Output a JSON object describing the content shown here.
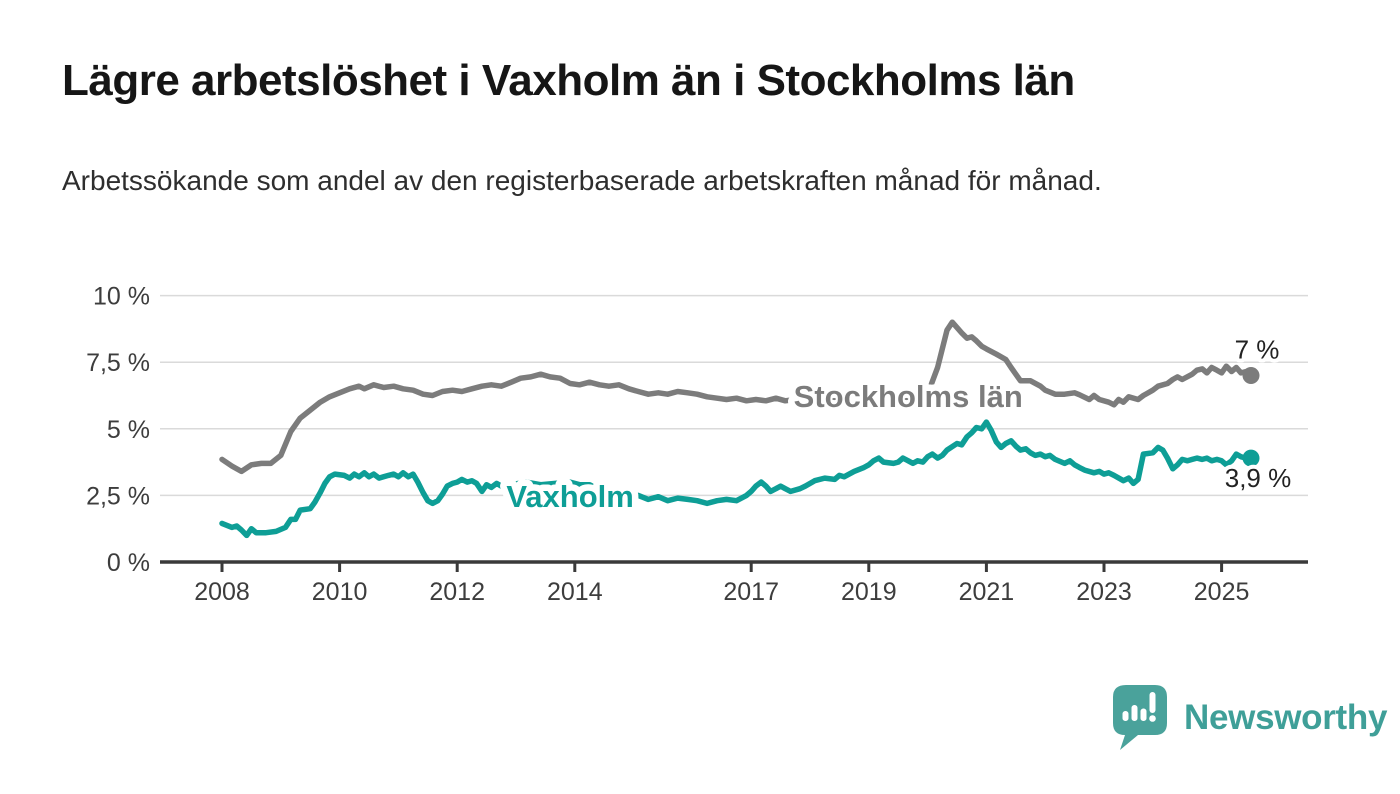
{
  "header": {
    "title": "Lägre arbetslöshet i Vaxholm än i Stockholms län",
    "subtitle": "Arbetssökande som andel av den registerbaserade arbetskraften månad för månad."
  },
  "footer": {
    "brand": "Newsworthy",
    "brand_color": "#3f9f98",
    "logo_icon": "newsworthy-speech-bubble-bar-chart-icon"
  },
  "chart_data": {
    "type": "line",
    "grid": true,
    "legend": "inline-labels",
    "x_domain": [
      2008,
      2026.47
    ],
    "y_domain": [
      0,
      10
    ],
    "y_unit": "%",
    "x_tick_labels": [
      {
        "value": 2008,
        "label": "2008"
      },
      {
        "value": 2010,
        "label": "2010"
      },
      {
        "value": 2012,
        "label": "2012"
      },
      {
        "value": 2014,
        "label": "2014"
      },
      {
        "value": 2017,
        "label": "2017"
      },
      {
        "value": 2019,
        "label": "2019"
      },
      {
        "value": 2021,
        "label": "2021"
      },
      {
        "value": 2023,
        "label": "2023"
      },
      {
        "value": 2025,
        "label": "2025"
      }
    ],
    "y_tick_labels": [
      {
        "value": 0,
        "label": "0 %"
      },
      {
        "value": 2.5,
        "label": "2,5 %"
      },
      {
        "value": 5,
        "label": "5 %"
      },
      {
        "value": 7.5,
        "label": "7,5 %"
      },
      {
        "value": 10,
        "label": "10 %"
      }
    ],
    "series": [
      {
        "id": "stockholms-lan",
        "name": "Stockholms län",
        "color": "#7c7c7c",
        "inline_label_pos": {
          "x": 2019.67,
          "y": 6.23
        },
        "end_label": "7 %",
        "end_value": 7.0,
        "points": [
          [
            2008.0,
            3.85
          ],
          [
            2008.17,
            3.6
          ],
          [
            2008.33,
            3.4
          ],
          [
            2008.5,
            3.65
          ],
          [
            2008.67,
            3.7
          ],
          [
            2008.83,
            3.7
          ],
          [
            2009.0,
            4.0
          ],
          [
            2009.17,
            4.9
          ],
          [
            2009.33,
            5.4
          ],
          [
            2009.5,
            5.7
          ],
          [
            2009.67,
            6.0
          ],
          [
            2009.83,
            6.2
          ],
          [
            2010.0,
            6.35
          ],
          [
            2010.17,
            6.5
          ],
          [
            2010.33,
            6.6
          ],
          [
            2010.42,
            6.5
          ],
          [
            2010.58,
            6.65
          ],
          [
            2010.75,
            6.55
          ],
          [
            2010.92,
            6.6
          ],
          [
            2011.08,
            6.5
          ],
          [
            2011.25,
            6.45
          ],
          [
            2011.42,
            6.3
          ],
          [
            2011.58,
            6.25
          ],
          [
            2011.75,
            6.4
          ],
          [
            2011.92,
            6.45
          ],
          [
            2012.08,
            6.4
          ],
          [
            2012.25,
            6.5
          ],
          [
            2012.42,
            6.6
          ],
          [
            2012.58,
            6.65
          ],
          [
            2012.75,
            6.6
          ],
          [
            2012.92,
            6.75
          ],
          [
            2013.08,
            6.9
          ],
          [
            2013.25,
            6.95
          ],
          [
            2013.42,
            7.05
          ],
          [
            2013.58,
            6.95
          ],
          [
            2013.75,
            6.9
          ],
          [
            2013.92,
            6.7
          ],
          [
            2014.08,
            6.65
          ],
          [
            2014.25,
            6.75
          ],
          [
            2014.42,
            6.65
          ],
          [
            2014.58,
            6.6
          ],
          [
            2014.75,
            6.65
          ],
          [
            2014.92,
            6.5
          ],
          [
            2015.08,
            6.4
          ],
          [
            2015.25,
            6.3
          ],
          [
            2015.42,
            6.35
          ],
          [
            2015.58,
            6.3
          ],
          [
            2015.75,
            6.4
          ],
          [
            2015.92,
            6.35
          ],
          [
            2016.08,
            6.3
          ],
          [
            2016.25,
            6.2
          ],
          [
            2016.42,
            6.15
          ],
          [
            2016.58,
            6.1
          ],
          [
            2016.75,
            6.15
          ],
          [
            2016.92,
            6.05
          ],
          [
            2017.08,
            6.1
          ],
          [
            2017.25,
            6.05
          ],
          [
            2017.42,
            6.15
          ],
          [
            2017.58,
            6.05
          ],
          [
            2017.75,
            6.1
          ],
          [
            2017.92,
            6.0
          ],
          [
            2018.08,
            6.05
          ],
          [
            2018.33,
            6.1
          ],
          [
            2018.58,
            6.0
          ],
          [
            2018.83,
            6.05
          ],
          [
            2019.08,
            6.0
          ],
          [
            2019.33,
            6.1
          ],
          [
            2019.58,
            6.05
          ],
          [
            2019.83,
            6.15
          ],
          [
            2020.0,
            6.3
          ],
          [
            2020.17,
            7.3
          ],
          [
            2020.33,
            8.7
          ],
          [
            2020.42,
            9.0
          ],
          [
            2020.5,
            8.8
          ],
          [
            2020.58,
            8.6
          ],
          [
            2020.67,
            8.4
          ],
          [
            2020.75,
            8.45
          ],
          [
            2020.83,
            8.3
          ],
          [
            2020.92,
            8.1
          ],
          [
            2021.0,
            8.0
          ],
          [
            2021.17,
            7.8
          ],
          [
            2021.33,
            7.6
          ],
          [
            2021.42,
            7.3
          ],
          [
            2021.5,
            7.05
          ],
          [
            2021.58,
            6.8
          ],
          [
            2021.75,
            6.8
          ],
          [
            2021.92,
            6.6
          ],
          [
            2022.0,
            6.45
          ],
          [
            2022.17,
            6.3
          ],
          [
            2022.33,
            6.3
          ],
          [
            2022.5,
            6.35
          ],
          [
            2022.58,
            6.28
          ],
          [
            2022.75,
            6.1
          ],
          [
            2022.83,
            6.25
          ],
          [
            2022.92,
            6.1
          ],
          [
            2023.08,
            6.0
          ],
          [
            2023.17,
            5.9
          ],
          [
            2023.25,
            6.1
          ],
          [
            2023.33,
            6.0
          ],
          [
            2023.42,
            6.2
          ],
          [
            2023.58,
            6.1
          ],
          [
            2023.67,
            6.25
          ],
          [
            2023.83,
            6.45
          ],
          [
            2023.92,
            6.6
          ],
          [
            2024.08,
            6.7
          ],
          [
            2024.17,
            6.85
          ],
          [
            2024.25,
            6.95
          ],
          [
            2024.33,
            6.85
          ],
          [
            2024.5,
            7.05
          ],
          [
            2024.58,
            7.2
          ],
          [
            2024.67,
            7.25
          ],
          [
            2024.75,
            7.1
          ],
          [
            2024.83,
            7.3
          ],
          [
            2024.92,
            7.2
          ],
          [
            2025.0,
            7.1
          ],
          [
            2025.08,
            7.35
          ],
          [
            2025.17,
            7.15
          ],
          [
            2025.25,
            7.3
          ],
          [
            2025.33,
            7.1
          ],
          [
            2025.42,
            7.15
          ],
          [
            2025.5,
            7.0
          ]
        ]
      },
      {
        "id": "vaxholm",
        "name": "Vaxholm",
        "color": "#0e9e96",
        "inline_label_pos": {
          "x": 2013.92,
          "y": 2.48
        },
        "end_label": "3,9 %",
        "end_value": 3.9,
        "points": [
          [
            2008.0,
            1.45
          ],
          [
            2008.17,
            1.3
          ],
          [
            2008.25,
            1.35
          ],
          [
            2008.33,
            1.2
          ],
          [
            2008.42,
            1.0
          ],
          [
            2008.5,
            1.25
          ],
          [
            2008.58,
            1.1
          ],
          [
            2008.75,
            1.1
          ],
          [
            2008.92,
            1.15
          ],
          [
            2009.08,
            1.3
          ],
          [
            2009.17,
            1.6
          ],
          [
            2009.25,
            1.6
          ],
          [
            2009.33,
            1.95
          ],
          [
            2009.5,
            2.0
          ],
          [
            2009.58,
            2.25
          ],
          [
            2009.67,
            2.6
          ],
          [
            2009.75,
            2.95
          ],
          [
            2009.83,
            3.2
          ],
          [
            2009.92,
            3.3
          ],
          [
            2010.08,
            3.25
          ],
          [
            2010.17,
            3.15
          ],
          [
            2010.25,
            3.3
          ],
          [
            2010.33,
            3.2
          ],
          [
            2010.42,
            3.35
          ],
          [
            2010.5,
            3.2
          ],
          [
            2010.58,
            3.3
          ],
          [
            2010.67,
            3.15
          ],
          [
            2010.83,
            3.25
          ],
          [
            2010.92,
            3.3
          ],
          [
            2011.0,
            3.2
          ],
          [
            2011.08,
            3.35
          ],
          [
            2011.17,
            3.2
          ],
          [
            2011.25,
            3.3
          ],
          [
            2011.33,
            3.0
          ],
          [
            2011.42,
            2.6
          ],
          [
            2011.5,
            2.3
          ],
          [
            2011.58,
            2.2
          ],
          [
            2011.67,
            2.3
          ],
          [
            2011.75,
            2.55
          ],
          [
            2011.83,
            2.85
          ],
          [
            2011.92,
            2.95
          ],
          [
            2012.0,
            3.0
          ],
          [
            2012.08,
            3.1
          ],
          [
            2012.17,
            3.0
          ],
          [
            2012.25,
            3.05
          ],
          [
            2012.33,
            2.95
          ],
          [
            2012.42,
            2.65
          ],
          [
            2012.5,
            2.9
          ],
          [
            2012.58,
            2.8
          ],
          [
            2012.67,
            2.95
          ],
          [
            2012.75,
            2.85
          ],
          [
            2012.92,
            2.9
          ],
          [
            2013.17,
            3.0
          ],
          [
            2013.42,
            2.9
          ],
          [
            2013.67,
            2.95
          ],
          [
            2013.92,
            3.0
          ],
          [
            2014.08,
            2.9
          ],
          [
            2014.25,
            2.9
          ],
          [
            2014.42,
            2.7
          ],
          [
            2014.58,
            2.55
          ],
          [
            2014.75,
            2.5
          ],
          [
            2014.92,
            2.45
          ],
          [
            2015.08,
            2.5
          ],
          [
            2015.25,
            2.35
          ],
          [
            2015.42,
            2.45
          ],
          [
            2015.58,
            2.3
          ],
          [
            2015.75,
            2.4
          ],
          [
            2015.92,
            2.35
          ],
          [
            2016.08,
            2.3
          ],
          [
            2016.25,
            2.2
          ],
          [
            2016.42,
            2.3
          ],
          [
            2016.58,
            2.35
          ],
          [
            2016.75,
            2.3
          ],
          [
            2016.92,
            2.5
          ],
          [
            2017.0,
            2.65
          ],
          [
            2017.08,
            2.85
          ],
          [
            2017.17,
            3.0
          ],
          [
            2017.25,
            2.85
          ],
          [
            2017.33,
            2.65
          ],
          [
            2017.42,
            2.75
          ],
          [
            2017.5,
            2.85
          ],
          [
            2017.58,
            2.75
          ],
          [
            2017.67,
            2.65
          ],
          [
            2017.83,
            2.75
          ],
          [
            2017.92,
            2.85
          ],
          [
            2018.08,
            3.05
          ],
          [
            2018.25,
            3.15
          ],
          [
            2018.42,
            3.1
          ],
          [
            2018.5,
            3.25
          ],
          [
            2018.58,
            3.2
          ],
          [
            2018.75,
            3.4
          ],
          [
            2018.92,
            3.55
          ],
          [
            2019.0,
            3.65
          ],
          [
            2019.08,
            3.8
          ],
          [
            2019.17,
            3.9
          ],
          [
            2019.25,
            3.75
          ],
          [
            2019.42,
            3.7
          ],
          [
            2019.5,
            3.75
          ],
          [
            2019.58,
            3.9
          ],
          [
            2019.67,
            3.8
          ],
          [
            2019.75,
            3.7
          ],
          [
            2019.83,
            3.8
          ],
          [
            2019.92,
            3.75
          ],
          [
            2020.0,
            3.95
          ],
          [
            2020.08,
            4.05
          ],
          [
            2020.17,
            3.9
          ],
          [
            2020.25,
            4.0
          ],
          [
            2020.33,
            4.2
          ],
          [
            2020.5,
            4.45
          ],
          [
            2020.58,
            4.4
          ],
          [
            2020.67,
            4.7
          ],
          [
            2020.75,
            4.85
          ],
          [
            2020.83,
            5.05
          ],
          [
            2020.92,
            5.0
          ],
          [
            2021.0,
            5.25
          ],
          [
            2021.08,
            4.95
          ],
          [
            2021.17,
            4.5
          ],
          [
            2021.25,
            4.3
          ],
          [
            2021.33,
            4.45
          ],
          [
            2021.42,
            4.55
          ],
          [
            2021.5,
            4.35
          ],
          [
            2021.58,
            4.2
          ],
          [
            2021.67,
            4.25
          ],
          [
            2021.75,
            4.1
          ],
          [
            2021.83,
            4.0
          ],
          [
            2021.92,
            4.05
          ],
          [
            2022.0,
            3.95
          ],
          [
            2022.08,
            4.0
          ],
          [
            2022.17,
            3.85
          ],
          [
            2022.33,
            3.7
          ],
          [
            2022.42,
            3.8
          ],
          [
            2022.5,
            3.65
          ],
          [
            2022.58,
            3.55
          ],
          [
            2022.67,
            3.45
          ],
          [
            2022.83,
            3.35
          ],
          [
            2022.92,
            3.4
          ],
          [
            2023.0,
            3.3
          ],
          [
            2023.08,
            3.35
          ],
          [
            2023.17,
            3.25
          ],
          [
            2023.33,
            3.05
          ],
          [
            2023.42,
            3.15
          ],
          [
            2023.5,
            2.95
          ],
          [
            2023.58,
            3.1
          ],
          [
            2023.67,
            4.05
          ],
          [
            2023.83,
            4.1
          ],
          [
            2023.92,
            4.3
          ],
          [
            2024.0,
            4.2
          ],
          [
            2024.08,
            3.9
          ],
          [
            2024.17,
            3.5
          ],
          [
            2024.25,
            3.65
          ],
          [
            2024.33,
            3.85
          ],
          [
            2024.42,
            3.8
          ],
          [
            2024.5,
            3.85
          ],
          [
            2024.58,
            3.9
          ],
          [
            2024.67,
            3.85
          ],
          [
            2024.75,
            3.9
          ],
          [
            2024.83,
            3.8
          ],
          [
            2024.92,
            3.85
          ],
          [
            2025.0,
            3.8
          ],
          [
            2025.08,
            3.65
          ],
          [
            2025.17,
            3.8
          ],
          [
            2025.25,
            4.05
          ],
          [
            2025.33,
            3.95
          ],
          [
            2025.42,
            3.9
          ],
          [
            2025.5,
            3.9
          ]
        ]
      }
    ]
  }
}
